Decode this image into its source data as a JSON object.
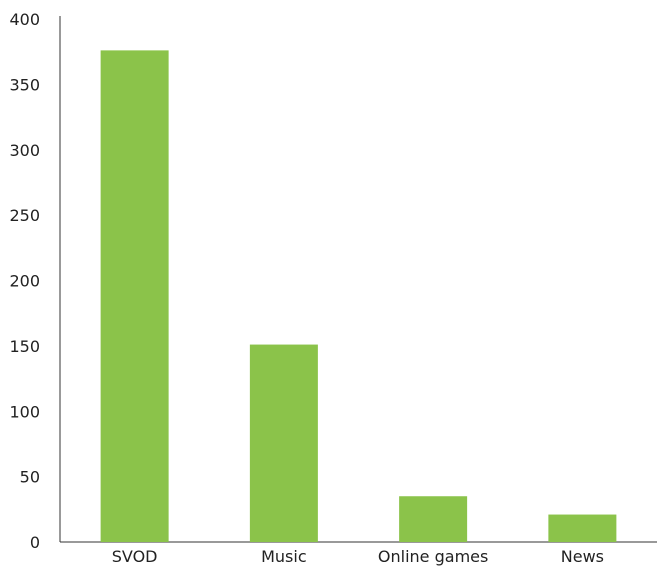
{
  "chart_data": {
    "type": "bar",
    "title": "",
    "xlabel": "",
    "ylabel": "",
    "categories": [
      "SVOD",
      "Music",
      "Online games",
      "News"
    ],
    "values": [
      376,
      151,
      35,
      21
    ],
    "ylim": [
      0,
      400
    ],
    "yticks": [
      0,
      50,
      100,
      150,
      200,
      250,
      300,
      350,
      400
    ],
    "grid": false,
    "legend": "none",
    "bar_color": "#8bc34a"
  }
}
